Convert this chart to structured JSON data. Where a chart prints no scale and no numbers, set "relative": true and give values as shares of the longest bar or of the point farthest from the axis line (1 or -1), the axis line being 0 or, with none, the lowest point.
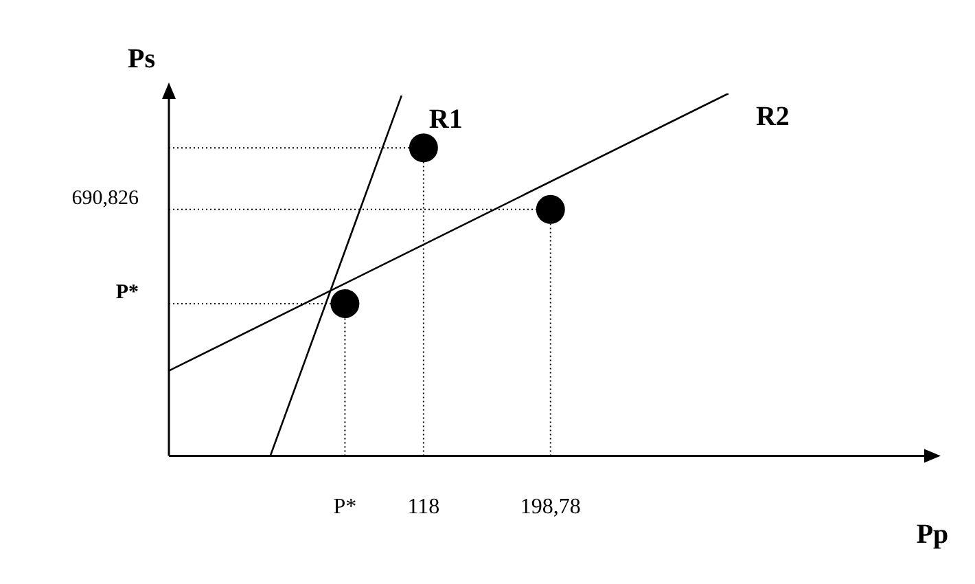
{
  "chart_data": {
    "type": "line",
    "relative": true,
    "xlabel": "Pp",
    "ylabel": "Ps",
    "xlim": [
      -44,
      440
    ],
    "xticks": [
      {
        "value": 68,
        "label": "P*"
      },
      118,
      {
        "value": 198.78,
        "label": "198,78"
      }
    ],
    "series": [
      {
        "name": "R1",
        "color": "#000000",
        "x": [
          20.5,
          104
        ],
        "values": [
          0,
          0.994
        ]
      },
      {
        "name": "R2",
        "color": "#000000",
        "x": [
          -44,
          312
        ],
        "values": [
          0.235,
          1
        ]
      },
      {
        "type": "scatter",
        "marker": "circle",
        "color": "#000000",
        "x": [
          68,
          118,
          198.78
        ],
        "values": [
          0.42,
          0.85,
          0.68
        ]
      }
    ],
    "ref_lines": [
      {
        "axis": "y",
        "value": 0.42,
        "line_style": "dotted"
      },
      {
        "axis": "y",
        "value": 0.68,
        "line_style": "dotted"
      },
      {
        "axis": "y",
        "value": 0.85,
        "line_style": "dotted"
      },
      {
        "axis": "x",
        "value": 68,
        "line_style": "dotted"
      },
      {
        "axis": "x",
        "value": 118,
        "line_style": "dotted"
      },
      {
        "axis": "x",
        "value": 198.78,
        "line_style": "dotted"
      }
    ],
    "annotations": [
      "P*",
      "690,826"
    ],
    "grid": false,
    "legend": false
  }
}
